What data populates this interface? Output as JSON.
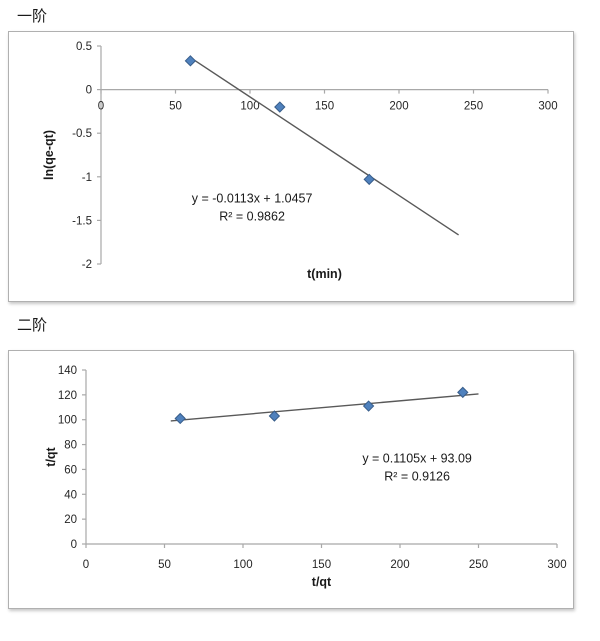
{
  "page": {
    "background": "#ffffff"
  },
  "chart_data": [
    {
      "type": "scatter",
      "title": "一阶",
      "xlabel": "t(min)",
      "ylabel": "ln(qe-qt)",
      "xlim": [
        0,
        300
      ],
      "xticks": [
        0,
        50,
        100,
        150,
        200,
        250,
        300
      ],
      "ylim": [
        -2,
        0.5
      ],
      "yticks": [
        0.5,
        0,
        -0.5,
        -1,
        -1.5,
        -2
      ],
      "grid": false,
      "legend": false,
      "series": [
        {
          "name": "measured-points",
          "marker": "diamond",
          "marker_fill": "#4f81bd",
          "marker_stroke": "#385d8a",
          "points": [
            [
              60,
              0.33
            ],
            [
              120,
              -0.2
            ],
            [
              180,
              -1.03
            ]
          ]
        }
      ],
      "trendline": {
        "slope": -0.0113,
        "intercept": 1.0457,
        "x_range": [
          60,
          240
        ],
        "color": "#595959"
      },
      "annotation": {
        "lines": [
          "y = -0.0113x + 1.0457",
          "R² = 0.9862"
        ],
        "fx": 0.338,
        "fy": 0.7
      },
      "axis_color": "#a8a8a8",
      "tick_color": "#262626",
      "label_color": "#1a1a1a"
    },
    {
      "type": "scatter",
      "title": "二阶",
      "xlabel": "t/qt",
      "ylabel": "t/qt",
      "xlim": [
        0,
        300
      ],
      "xticks": [
        0,
        50,
        100,
        150,
        200,
        250,
        300
      ],
      "ylim": [
        0,
        140
      ],
      "yticks": [
        0,
        20,
        40,
        60,
        80,
        100,
        120,
        140
      ],
      "grid": false,
      "legend": false,
      "series": [
        {
          "name": "measured-points",
          "marker": "diamond",
          "marker_fill": "#4f81bd",
          "marker_stroke": "#385d8a",
          "points": [
            [
              60,
              101
            ],
            [
              120,
              103
            ],
            [
              180,
              111
            ],
            [
              240,
              122
            ]
          ]
        }
      ],
      "trendline": {
        "slope": 0.1105,
        "intercept": 93.09,
        "x_range": [
          54,
          250
        ],
        "color": "#595959"
      },
      "annotation": {
        "lines": [
          "y = 0.1105x + 93.09",
          "R² = 0.9126"
        ],
        "fx": 0.703,
        "fy": 0.51
      },
      "axis_color": "#a8a8a8",
      "tick_color": "#262626",
      "label_color": "#1a1a1a"
    }
  ]
}
